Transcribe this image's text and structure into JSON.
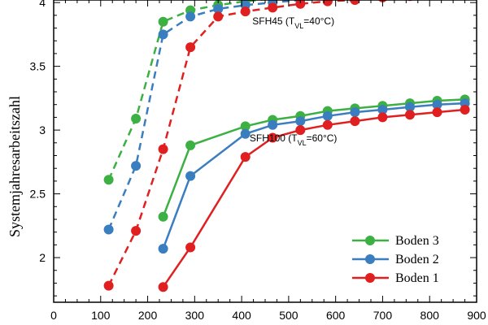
{
  "chart_data": {
    "type": "line",
    "xlabel": "",
    "ylabel": "Systemjahresarbeitszahl",
    "xlim": [
      0,
      900
    ],
    "ylim": [
      1.65,
      4.02
    ],
    "xticks": [
      0,
      100,
      200,
      300,
      400,
      500,
      600,
      700,
      800,
      900
    ],
    "yticks": [
      2,
      2.5,
      3,
      3.5,
      4
    ],
    "grid": false,
    "legend_position": "bottom-right",
    "annotations": [
      {
        "text": "SFH45 (T",
        "sub": "VL",
        "tail": "=40°C)",
        "x": 510,
        "y": 3.83
      },
      {
        "text": "SFH100 (T",
        "sub": "VL",
        "tail": "=60°C)",
        "x": 510,
        "y": 2.91
      }
    ],
    "colors": {
      "Boden 3": "#3cb043",
      "Boden 2": "#3a7ebf",
      "Boden 1": "#e02020"
    },
    "series": [
      {
        "name": "Boden 3",
        "group": "SFH45",
        "style": "dashed",
        "x": [
          117,
          175,
          233,
          291,
          350,
          408,
          466,
          525,
          583,
          641,
          700,
          758,
          816,
          875
        ],
        "y": [
          2.61,
          3.09,
          3.85,
          3.94,
          3.98,
          4.01,
          4.03,
          4.05,
          4.06,
          4.07,
          4.08,
          4.08,
          4.09,
          4.09
        ]
      },
      {
        "name": "Boden 2",
        "group": "SFH45",
        "style": "dashed",
        "x": [
          117,
          175,
          233,
          291,
          350,
          408,
          466,
          525,
          583,
          641,
          700,
          758,
          816,
          875
        ],
        "y": [
          2.22,
          2.72,
          3.75,
          3.89,
          3.95,
          3.98,
          4.0,
          4.02,
          4.03,
          4.04,
          4.05,
          4.06,
          4.07,
          4.07
        ]
      },
      {
        "name": "Boden 1",
        "group": "SFH45",
        "style": "dashed",
        "x": [
          117,
          175,
          233,
          291,
          350,
          408,
          466,
          525,
          583,
          641,
          700,
          758,
          816,
          875
        ],
        "y": [
          1.78,
          2.21,
          2.85,
          3.65,
          3.89,
          3.93,
          3.96,
          3.99,
          4.01,
          4.02,
          4.04,
          4.05,
          4.06,
          4.06
        ]
      },
      {
        "name": "Boden 3",
        "group": "SFH100",
        "style": "solid",
        "x": [
          233,
          291,
          408,
          466,
          525,
          583,
          641,
          700,
          758,
          816,
          875
        ],
        "y": [
          2.32,
          2.88,
          3.03,
          3.08,
          3.11,
          3.15,
          3.17,
          3.19,
          3.21,
          3.23,
          3.24
        ]
      },
      {
        "name": "Boden 2",
        "group": "SFH100",
        "style": "solid",
        "x": [
          233,
          291,
          408,
          466,
          525,
          583,
          641,
          700,
          758,
          816,
          875
        ],
        "y": [
          2.07,
          2.64,
          2.97,
          3.04,
          3.07,
          3.11,
          3.14,
          3.16,
          3.18,
          3.2,
          3.21
        ]
      },
      {
        "name": "Boden 1",
        "group": "SFH100",
        "style": "solid",
        "x": [
          233,
          291,
          408,
          466,
          525,
          583,
          641,
          700,
          758,
          816,
          875
        ],
        "y": [
          1.77,
          2.08,
          2.79,
          2.94,
          3.0,
          3.04,
          3.07,
          3.1,
          3.12,
          3.14,
          3.16
        ]
      }
    ],
    "legend": [
      "Boden 3",
      "Boden 2",
      "Boden 1"
    ]
  }
}
